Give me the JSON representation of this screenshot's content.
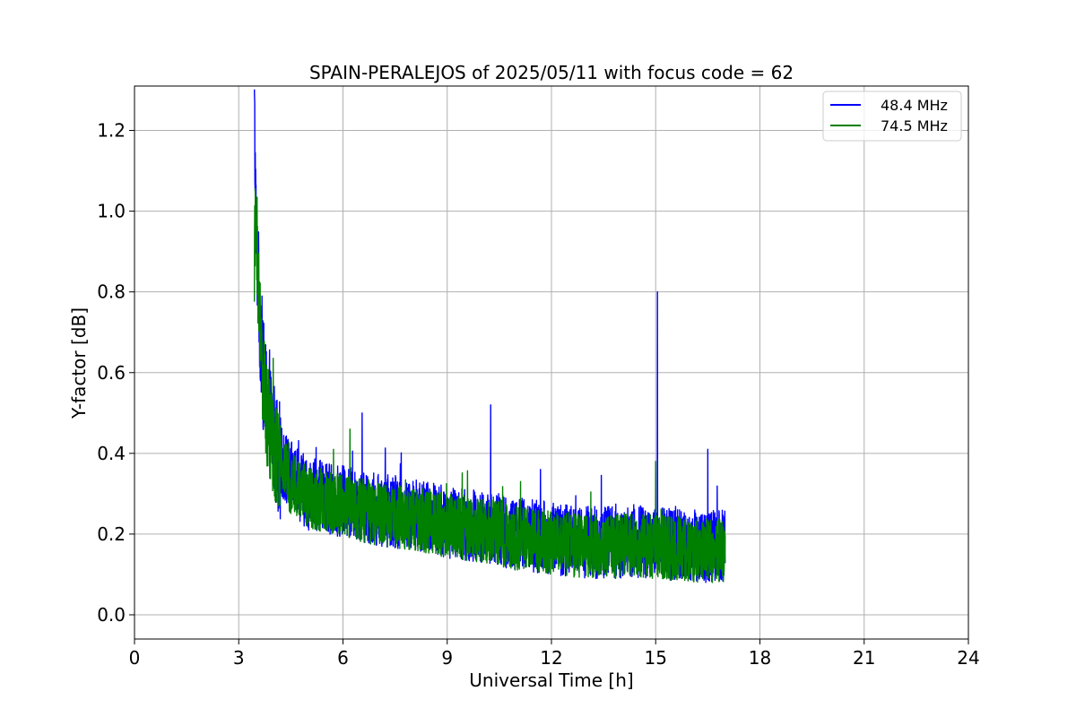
{
  "chart_data": {
    "type": "line",
    "title": "SPAIN-PERALEJOS of 2025/05/11 with focus code = 62",
    "xlabel": "Universal Time [h]",
    "ylabel": "Y-factor [dB]",
    "xlim": [
      0,
      24
    ],
    "ylim": [
      -0.06,
      1.31
    ],
    "x_ticks": [
      0,
      3,
      6,
      9,
      12,
      15,
      18,
      21,
      24
    ],
    "y_ticks": [
      0.0,
      0.2,
      0.4,
      0.6,
      0.8,
      1.0,
      1.2
    ],
    "grid": true,
    "legend_position": "top-right",
    "series": [
      {
        "name": "48.4 MHz",
        "color": "#0000ff",
        "x_range": [
          3.45,
          17.0
        ],
        "points": [
          [
            3.45,
            1.24
          ],
          [
            3.5,
            0.95
          ],
          [
            3.6,
            0.75
          ],
          [
            3.7,
            0.6
          ],
          [
            3.8,
            0.52
          ],
          [
            4.0,
            0.44
          ],
          [
            4.2,
            0.38
          ],
          [
            4.5,
            0.34
          ],
          [
            5.0,
            0.3
          ],
          [
            6.0,
            0.28
          ],
          [
            7.0,
            0.26
          ],
          [
            8.0,
            0.25
          ],
          [
            9.0,
            0.23
          ],
          [
            10.0,
            0.22
          ],
          [
            11.0,
            0.2
          ],
          [
            12.0,
            0.19
          ],
          [
            13.0,
            0.18
          ],
          [
            14.0,
            0.18
          ],
          [
            15.0,
            0.18
          ],
          [
            16.0,
            0.17
          ],
          [
            17.0,
            0.17
          ]
        ],
        "spikes": [
          [
            15.05,
            0.8
          ],
          [
            10.25,
            0.52
          ],
          [
            6.55,
            0.5
          ],
          [
            16.5,
            0.41
          ]
        ],
        "noise_amplitude": 0.09,
        "band_min": 0.0
      },
      {
        "name": "74.5 MHz",
        "color": "#008000",
        "x_range": [
          3.45,
          17.0
        ],
        "points": [
          [
            3.45,
            0.88
          ],
          [
            3.5,
            0.98
          ],
          [
            3.6,
            0.72
          ],
          [
            3.7,
            0.58
          ],
          [
            3.8,
            0.5
          ],
          [
            4.0,
            0.42
          ],
          [
            4.2,
            0.37
          ],
          [
            4.5,
            0.33
          ],
          [
            5.0,
            0.29
          ],
          [
            6.0,
            0.27
          ],
          [
            7.0,
            0.25
          ],
          [
            8.0,
            0.24
          ],
          [
            9.0,
            0.22
          ],
          [
            10.0,
            0.21
          ],
          [
            11.0,
            0.19
          ],
          [
            12.0,
            0.18
          ],
          [
            13.0,
            0.17
          ],
          [
            14.0,
            0.17
          ],
          [
            15.0,
            0.17
          ],
          [
            16.0,
            0.16
          ],
          [
            17.0,
            0.16
          ]
        ],
        "spikes": [
          [
            15.0,
            0.38
          ],
          [
            6.2,
            0.46
          ]
        ],
        "noise_amplitude": 0.08,
        "band_min": 0.0
      }
    ]
  }
}
